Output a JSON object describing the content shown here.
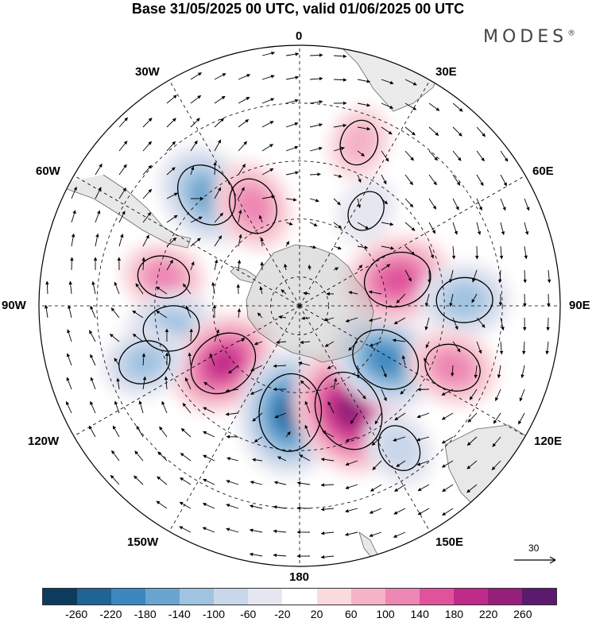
{
  "title": "Base 31/05/2025 00 UTC, valid 01/06/2025 00 UTC",
  "brand": "MODES",
  "brand_mark": "®",
  "longitude_labels": {
    "lon_0": "0",
    "lon_30e": "30E",
    "lon_60e": "60E",
    "lon_90e": "90E",
    "lon_120e": "120E",
    "lon_150e": "150E",
    "lon_180": "180",
    "lon_150w": "150W",
    "lon_120w": "120W",
    "lon_90w": "90W",
    "lon_60w": "60W",
    "lon_30w": "30W"
  },
  "reference_vector": {
    "label": "30"
  },
  "colorbar": {
    "colors": [
      "#0d3b5e",
      "#1f6496",
      "#3b88bf",
      "#6aa5cf",
      "#9fc3e1",
      "#c9d7ea",
      "#e6e6f0",
      "#ffffff",
      "#fadadd",
      "#f4b3c7",
      "#ed86b3",
      "#e0529b",
      "#c02a8a",
      "#962079",
      "#5a1a6e"
    ],
    "ticks": [
      "-260",
      "-220",
      "-180",
      "-140",
      "-100",
      "-60",
      "-20",
      "20",
      "60",
      "100",
      "140",
      "180",
      "220",
      "260"
    ]
  },
  "map_data": {
    "projection": "south polar stereographic",
    "anomaly_centers": [
      {
        "lon": -40,
        "lat": -40,
        "value": -180
      },
      {
        "lon": -25,
        "lat": -52,
        "value": 140
      },
      {
        "lon": -78,
        "lat": -42,
        "value": 120
      },
      {
        "lon": -100,
        "lat": -45,
        "value": -140
      },
      {
        "lon": -127,
        "lat": -57,
        "value": 200
      },
      {
        "lon": -110,
        "lat": -33,
        "value": -120
      },
      {
        "lon": -175,
        "lat": -53,
        "value": -240
      },
      {
        "lon": 155,
        "lat": -50,
        "value": 250
      },
      {
        "lon": 122,
        "lat": -55,
        "value": -200
      },
      {
        "lon": 75,
        "lat": -55,
        "value": 190
      },
      {
        "lon": 88,
        "lat": -33,
        "value": -140
      },
      {
        "lon": 112,
        "lat": -33,
        "value": 140
      },
      {
        "lon": 20,
        "lat": -30,
        "value": 90
      },
      {
        "lon": 35,
        "lat": -50,
        "value": -70
      },
      {
        "lon": 145,
        "lat": -30,
        "value": -100
      }
    ],
    "land_shading": "#bdbdbd"
  }
}
